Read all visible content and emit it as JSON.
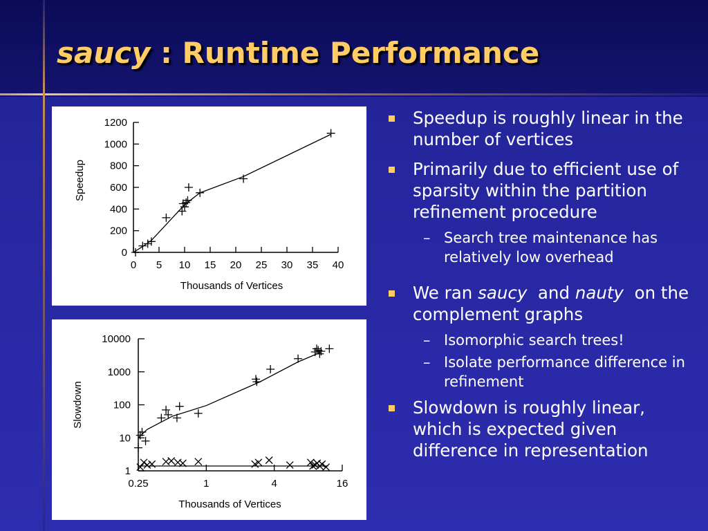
{
  "slide": {
    "title_italic": "saucy",
    "title_rest": " : Runtime Performance"
  },
  "bullets": {
    "b1": "Speedup is roughly linear in the number of vertices",
    "b2": "Primarily due to efficient use of sparsity within the partition refinement procedure",
    "b2_sub1": "Search tree maintenance has relatively low overhead",
    "b3_pre": "We ran ",
    "b3_saucy": "saucy",
    "b3_and": "and",
    "b3_nauty": "nauty",
    "b3_post": "on the complement graphs",
    "b3_sub1": "Isomorphic search trees!",
    "b3_sub2": "Isolate performance difference in refinement",
    "b4": "Slowdown is roughly linear, which is expected given difference in representation"
  },
  "colors": {
    "title": "#ffcc66",
    "bullet_marker": "#ffcc66",
    "text": "#ffffff",
    "background": "#2a2aa8"
  },
  "chart_data": [
    {
      "type": "scatter",
      "xlabel": "Thousands of Vertices",
      "ylabel": "Speedup",
      "xlim": [
        0,
        40
      ],
      "ylim": [
        0,
        1200
      ],
      "x_ticks": [
        0,
        5,
        10,
        15,
        20,
        25,
        30,
        35,
        40
      ],
      "y_ticks": [
        0,
        200,
        400,
        600,
        800,
        1000,
        1200
      ],
      "marker": "plus",
      "points": [
        [
          0.4,
          0
        ],
        [
          1.8,
          60
        ],
        [
          2.8,
          80
        ],
        [
          3.5,
          100
        ],
        [
          6.4,
          320
        ],
        [
          9.5,
          380
        ],
        [
          9.7,
          450
        ],
        [
          10.0,
          420
        ],
        [
          10.3,
          460
        ],
        [
          10.6,
          480
        ],
        [
          10.8,
          600
        ],
        [
          13.0,
          550
        ],
        [
          21.5,
          680
        ],
        [
          38.6,
          1100
        ]
      ],
      "line": [
        [
          0,
          0
        ],
        [
          2,
          60
        ],
        [
          3.5,
          110
        ],
        [
          10,
          440
        ],
        [
          13,
          550
        ],
        [
          21.5,
          700
        ],
        [
          38.6,
          1090
        ]
      ]
    },
    {
      "type": "scatter",
      "xlabel": "Thousands of Vertices",
      "ylabel": "Slowdown",
      "x_scale": "log2",
      "y_scale": "log10",
      "xlim": [
        0.25,
        16
      ],
      "ylim": [
        1,
        10000
      ],
      "x_ticks": [
        0.25,
        1,
        4,
        16
      ],
      "x_tick_labels": [
        "0.25",
        "1",
        "4",
        "16"
      ],
      "y_ticks": [
        1,
        10,
        100,
        1000,
        10000
      ],
      "y_tick_labels": [
        "1",
        "10",
        "100",
        "1000",
        "10000"
      ],
      "series": [
        {
          "marker": "plus",
          "points": [
            [
              0.25,
              5
            ],
            [
              0.26,
              12
            ],
            [
              0.27,
              15
            ],
            [
              0.29,
              8
            ],
            [
              0.4,
              40
            ],
            [
              0.44,
              70
            ],
            [
              0.46,
              50
            ],
            [
              0.55,
              40
            ],
            [
              0.58,
              90
            ],
            [
              0.85,
              55
            ],
            [
              2.75,
              600
            ],
            [
              2.8,
              500
            ],
            [
              3.7,
              1200
            ],
            [
              6.5,
              2500
            ],
            [
              9.2,
              4000
            ],
            [
              9.5,
              5000
            ],
            [
              9.8,
              4500
            ],
            [
              10.1,
              3500
            ],
            [
              10.4,
              4200
            ],
            [
              12.3,
              5000
            ]
          ],
          "line": [
            [
              0.25,
              10
            ],
            [
              0.3,
              18
            ],
            [
              0.5,
              45
            ],
            [
              1,
              95
            ],
            [
              3,
              500
            ],
            [
              6.5,
              2000
            ],
            [
              10.5,
              4000
            ]
          ]
        },
        {
          "marker": "cross",
          "points": [
            [
              0.26,
              1.3
            ],
            [
              0.28,
              1.8
            ],
            [
              0.3,
              1.5
            ],
            [
              0.33,
              1.6
            ],
            [
              0.44,
              1.9
            ],
            [
              0.49,
              2.0
            ],
            [
              0.56,
              1.8
            ],
            [
              0.62,
              1.7
            ],
            [
              0.85,
              1.9
            ],
            [
              2.7,
              1.6
            ],
            [
              2.9,
              1.8
            ],
            [
              3.6,
              2.1
            ],
            [
              5.5,
              1.5
            ],
            [
              8.4,
              1.8
            ],
            [
              8.8,
              1.4
            ],
            [
              9.2,
              1.5
            ],
            [
              9.6,
              1.7
            ],
            [
              10.1,
              1.4
            ],
            [
              10.6,
              1.6
            ],
            [
              11.5,
              1.3
            ]
          ],
          "line": [
            [
              0.25,
              1.4
            ],
            [
              12,
              1.4
            ]
          ]
        }
      ]
    }
  ]
}
